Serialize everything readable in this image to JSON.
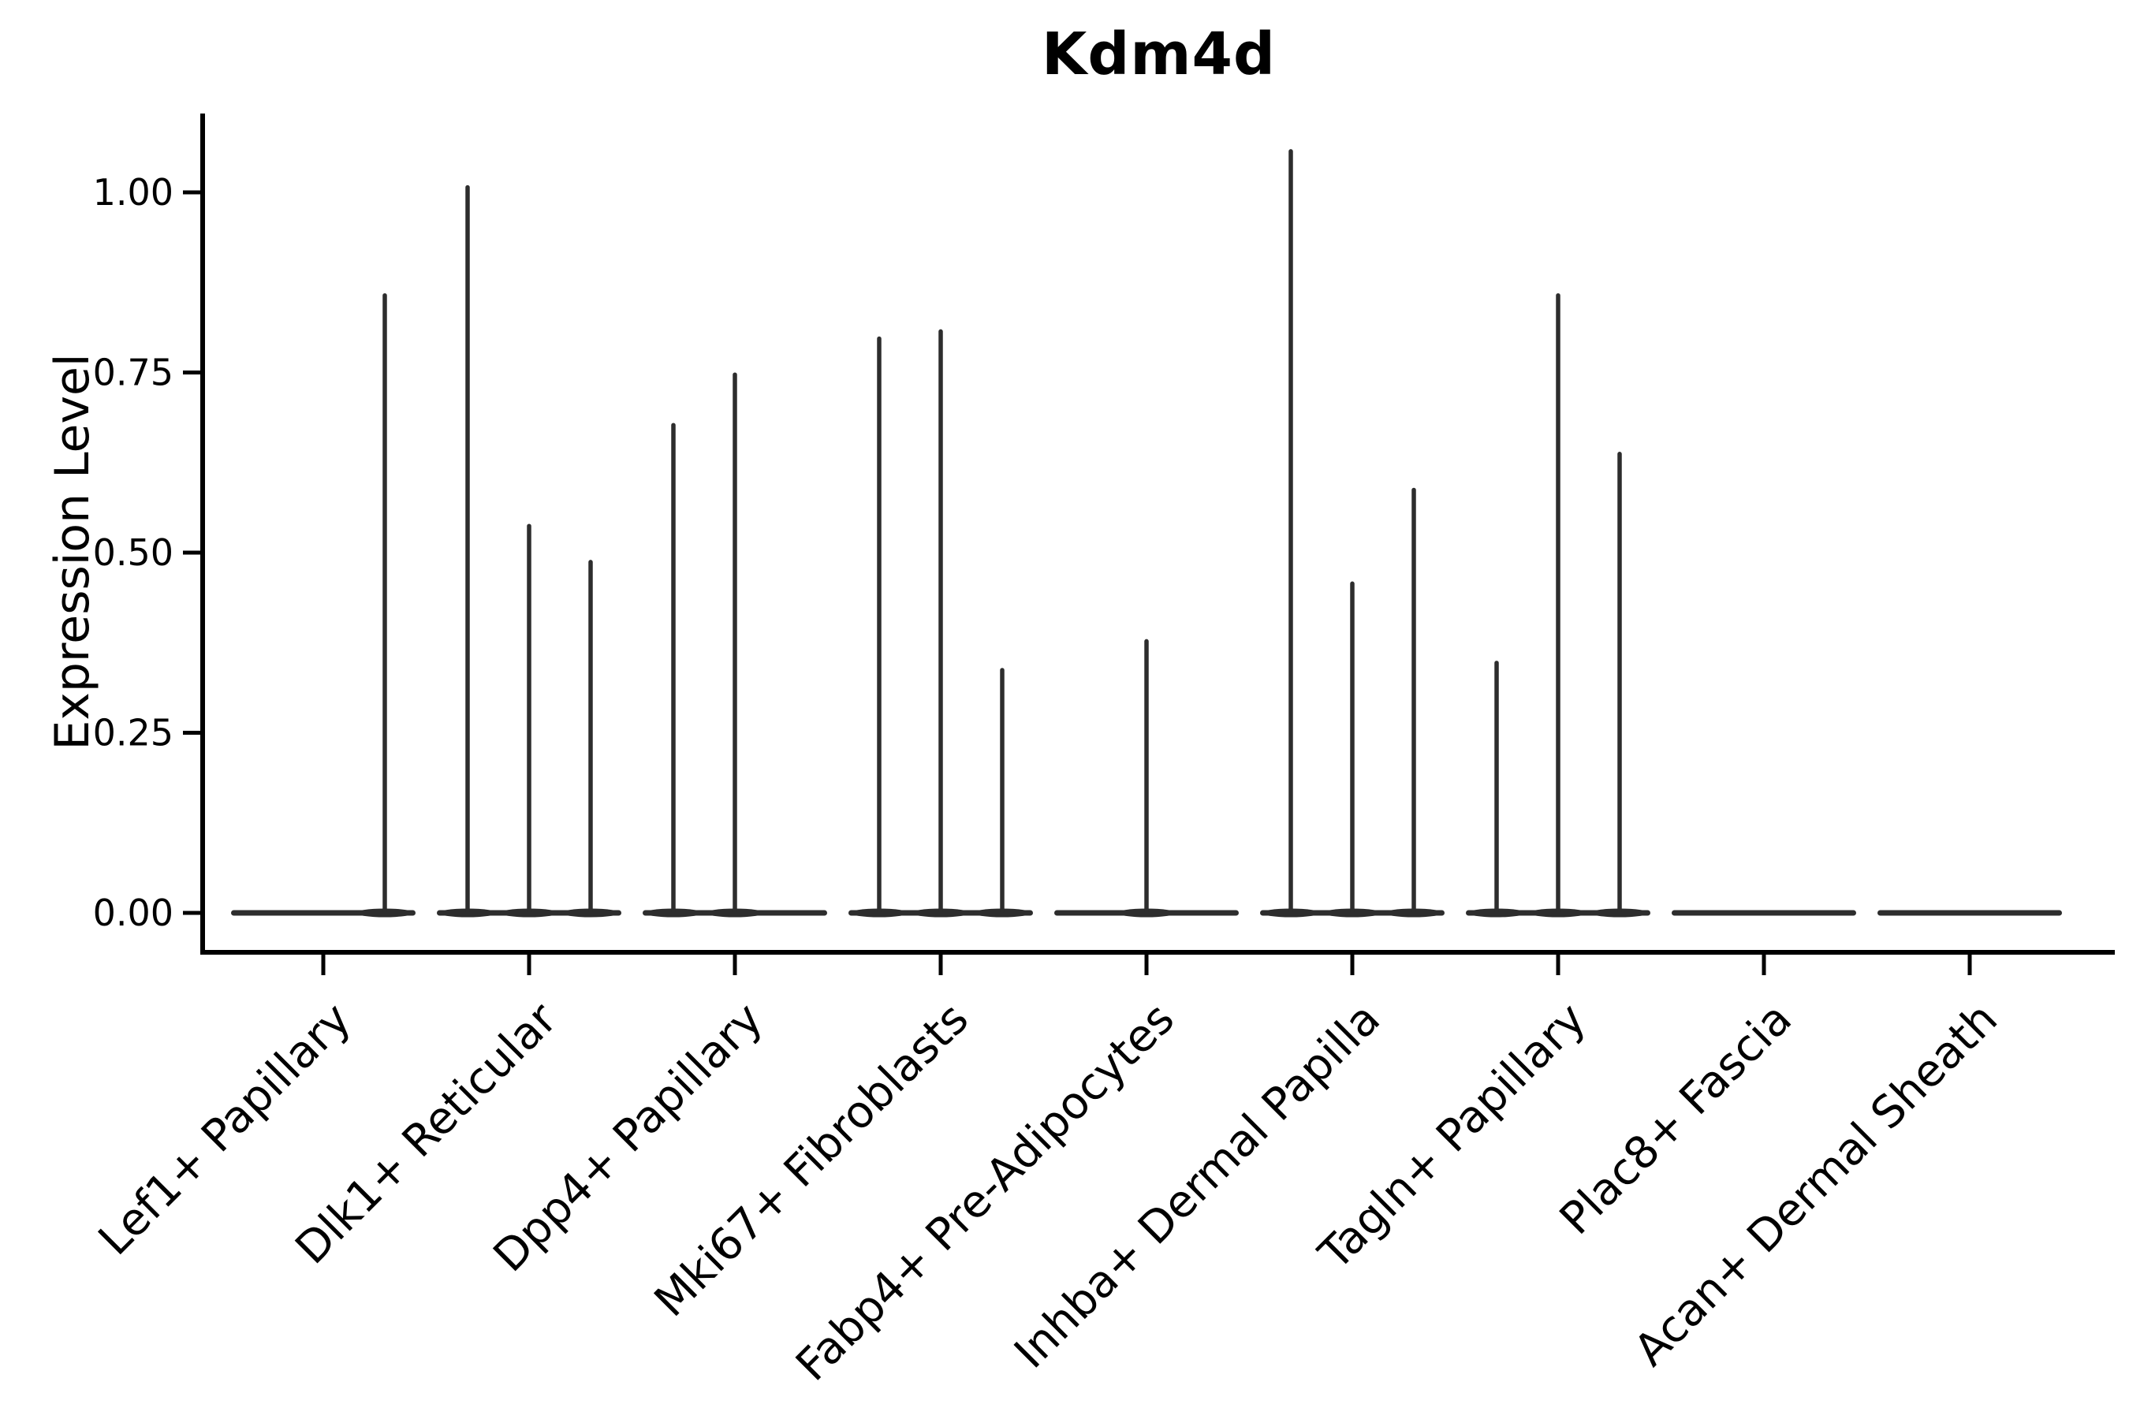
{
  "chart_data": {
    "type": "violin",
    "title": "Kdm4d",
    "ylabel": "Expression Level",
    "xlabel": "",
    "ylim": [
      -0.06,
      1.11
    ],
    "grid": false,
    "legend": false,
    "yticks": [
      {
        "value": 0.0,
        "label": "0.00"
      },
      {
        "value": 0.25,
        "label": "0.25"
      },
      {
        "value": 0.5,
        "label": "0.50"
      },
      {
        "value": 0.75,
        "label": "0.75"
      },
      {
        "value": 1.0,
        "label": "1.00"
      }
    ],
    "categories": [
      "Lef1+ Papillary",
      "Dlk1+ Reticular",
      "Dpp4+ Papillary",
      "Mki67+ Fibroblasts",
      "Fabp4+ Pre-Adipocytes",
      "Inhba+ Dermal Papilla",
      "Tagln+ Papillary",
      "Plac8+ Fascia",
      "Acan+ Dermal Sheath"
    ],
    "series": [
      {
        "name": "left-violin",
        "values": [
          null,
          1.01,
          0.68,
          0.8,
          null,
          1.06,
          0.35,
          null,
          null
        ]
      },
      {
        "name": "center-violin",
        "values": [
          null,
          0.54,
          0.75,
          0.81,
          0.38,
          0.46,
          0.86,
          null,
          null
        ]
      },
      {
        "name": "right-violin",
        "values": [
          0.86,
          0.49,
          null,
          0.34,
          null,
          0.59,
          0.64,
          null,
          null
        ]
      }
    ],
    "annotations": "all violins collapsed at 0 expression with thin max-value spikes; no points shown",
    "xtick_rotation_deg": 45
  },
  "colors": {
    "violin": "#2d2d2d",
    "axis": "#000000",
    "text": "#000000",
    "background": "#ffffff"
  }
}
